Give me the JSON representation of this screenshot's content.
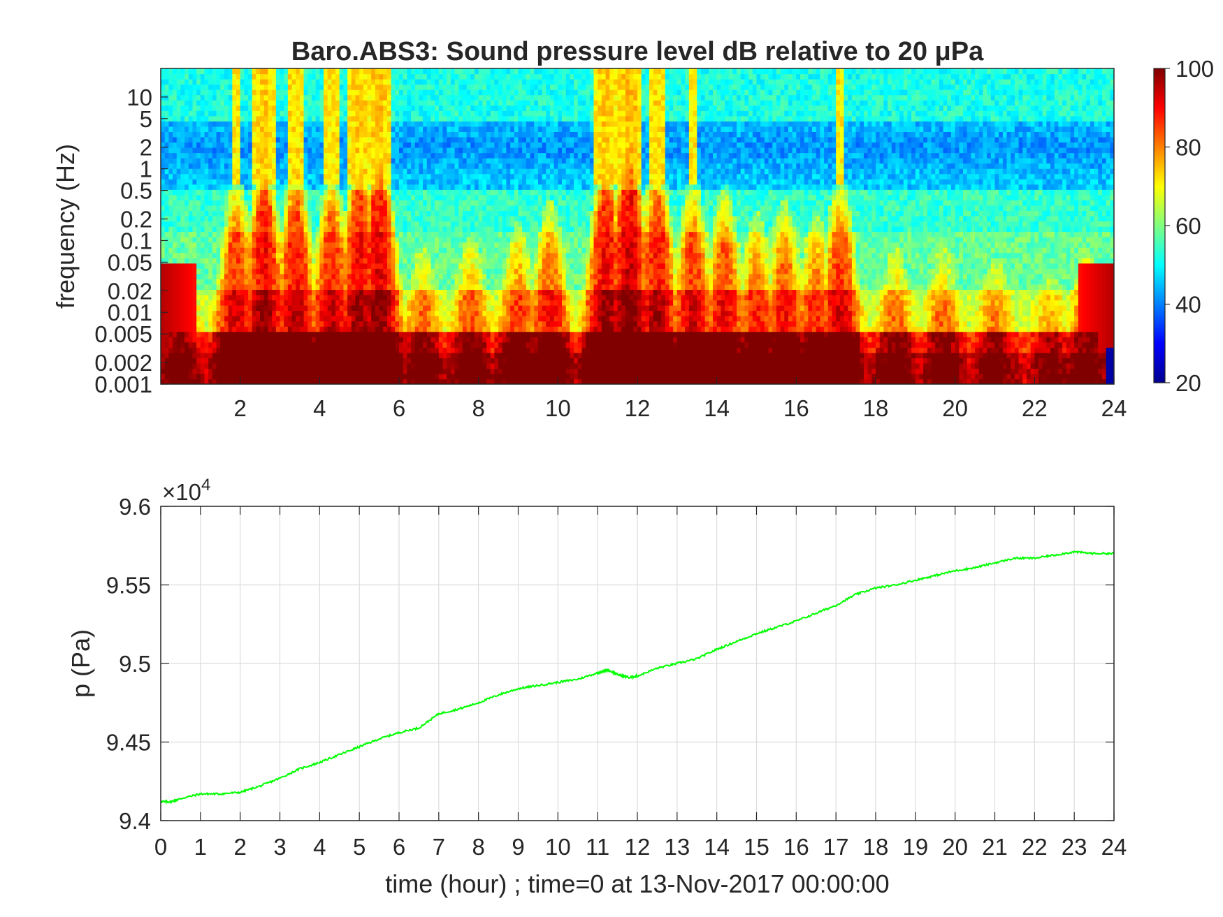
{
  "chart_data": [
    {
      "type": "heatmap",
      "title": "Baro.ABS3: Sound pressure level dB relative to 20 μPa",
      "xlabel": "",
      "ylabel": "frequency (Hz)",
      "xlim": [
        0,
        24
      ],
      "x_ticks": [
        "2",
        "4",
        "6",
        "8",
        "10",
        "12",
        "14",
        "16",
        "18",
        "20",
        "22",
        "24"
      ],
      "y_scale": "log",
      "ylim": [
        0.001,
        25
      ],
      "y_ticks": [
        "10",
        "5",
        "2",
        "1",
        "0.5",
        "0.2",
        "0.1",
        "0.05",
        "0.02",
        "0.01",
        "0.005",
        "0.002",
        "0.001"
      ],
      "colorbar": {
        "range": [
          20,
          100
        ],
        "ticks": [
          "100",
          "80",
          "60",
          "40",
          "20"
        ],
        "colormap": "jet"
      },
      "colormap_colors": [
        "#00008f",
        "#0000ff",
        "#00ffff",
        "#ffff00",
        "#ff0000",
        "#800000"
      ],
      "activity_times_hour": [
        0.5,
        1.9,
        2.6,
        3.4,
        4.3,
        5.0,
        5.5,
        6.6,
        7.8,
        9.0,
        9.8,
        11.2,
        11.8,
        12.5,
        13.4,
        14.2,
        15.0,
        15.7,
        16.5,
        17.1,
        18.5,
        19.7,
        21.0,
        22.4,
        23.3
      ],
      "activity_levels": [
        0.4,
        0.75,
        0.9,
        0.85,
        0.8,
        0.9,
        0.95,
        0.45,
        0.5,
        0.55,
        0.65,
        0.9,
        1.0,
        0.85,
        0.75,
        0.7,
        0.6,
        0.65,
        0.6,
        0.75,
        0.45,
        0.45,
        0.4,
        0.35,
        0.45
      ]
    },
    {
      "type": "line",
      "title": "",
      "xlabel": "time (hour) ; time=0 at 13-Nov-2017 00:00:00",
      "ylabel": "p (Pa)",
      "exponent_label": "×10",
      "exponent_power": "4",
      "xlim": [
        0,
        24
      ],
      "ylim": [
        9.4,
        9.6
      ],
      "x_ticks": [
        "0",
        "1",
        "2",
        "3",
        "4",
        "5",
        "6",
        "7",
        "8",
        "9",
        "10",
        "11",
        "12",
        "13",
        "14",
        "15",
        "16",
        "17",
        "18",
        "19",
        "20",
        "21",
        "22",
        "23",
        "24"
      ],
      "y_ticks": [
        "9.6",
        "9.55",
        "9.5",
        "9.45",
        "9.4"
      ],
      "grid": true,
      "line_color": "#00ff00",
      "series": [
        {
          "x": [
            0,
            0.25,
            0.5,
            1,
            1.5,
            2,
            2.5,
            3,
            3.5,
            4,
            4.5,
            5,
            5.5,
            6,
            6.5,
            7,
            7.5,
            8,
            8.5,
            9,
            9.5,
            10,
            10.5,
            11,
            11.25,
            11.5,
            11.8,
            12,
            12.5,
            13,
            13.5,
            14,
            14.5,
            15,
            15.5,
            16,
            16.5,
            17,
            17.5,
            18,
            18.5,
            19,
            19.5,
            20,
            20.5,
            21,
            21.5,
            22,
            22.5,
            23,
            23.5,
            24
          ],
          "y": [
            9.412,
            9.412,
            9.414,
            9.417,
            9.417,
            9.418,
            9.422,
            9.427,
            9.433,
            9.437,
            9.442,
            9.447,
            9.452,
            9.456,
            9.459,
            9.468,
            9.471,
            9.475,
            9.48,
            9.484,
            9.486,
            9.488,
            9.49,
            9.494,
            9.496,
            9.493,
            9.491,
            9.492,
            9.497,
            9.5,
            9.503,
            9.509,
            9.514,
            9.519,
            9.523,
            9.527,
            9.532,
            9.537,
            9.544,
            9.548,
            9.55,
            9.553,
            9.556,
            9.559,
            9.561,
            9.564,
            9.567,
            9.567,
            9.569,
            9.571,
            9.57,
            9.57
          ]
        }
      ]
    }
  ]
}
